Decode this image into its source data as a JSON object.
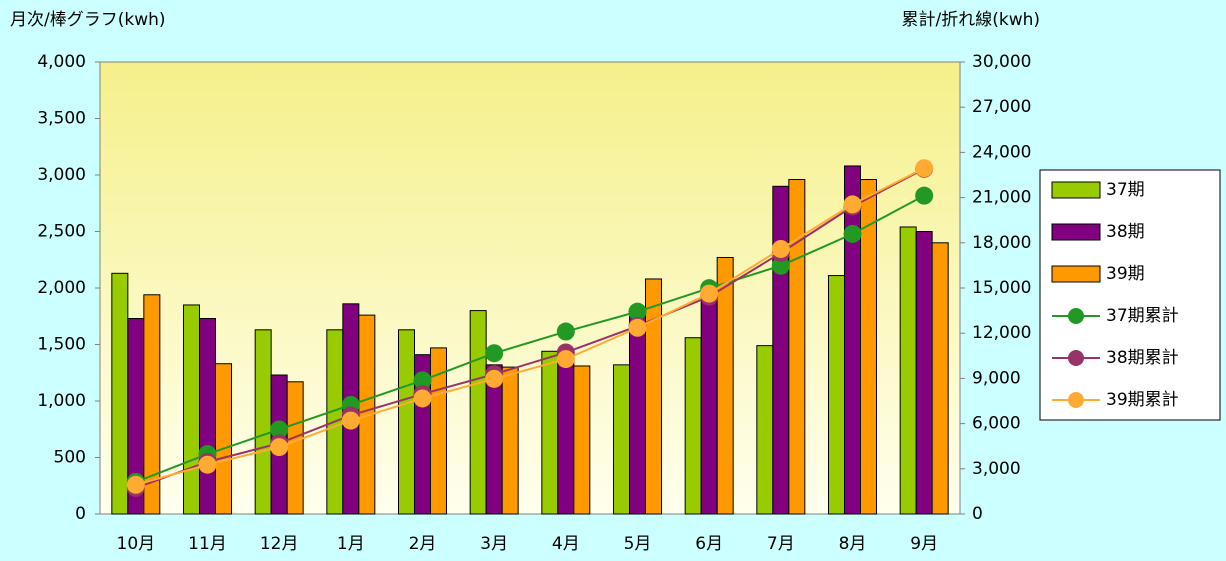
{
  "chart_data": {
    "type": "bar",
    "y_label": "月次/棒グラフ(kwh)",
    "y2_label": "累計/折れ線(kwh)",
    "categories": [
      "10月",
      "11月",
      "12月",
      "1月",
      "2月",
      "3月",
      "4月",
      "5月",
      "6月",
      "7月",
      "8月",
      "9月"
    ],
    "series": [
      {
        "name": "37期",
        "color": "#99cc00",
        "values": [
          2130,
          1850,
          1630,
          1630,
          1630,
          1800,
          1440,
          1320,
          1560,
          1490,
          2110,
          2540
        ]
      },
      {
        "name": "38期",
        "color": "#800080",
        "values": [
          1730,
          1730,
          1230,
          1860,
          1410,
          1320,
          1440,
          1750,
          1960,
          2900,
          3080,
          2500
        ]
      },
      {
        "name": "39期",
        "color": "#ff9900",
        "values": [
          1940,
          1330,
          1170,
          1760,
          1470,
          1300,
          1310,
          2080,
          2270,
          2960,
          2960,
          2400
        ]
      },
      {
        "name": "37期累計",
        "color": "#229922",
        "axis": "y2",
        "values": [
          2130,
          3980,
          5610,
          7240,
          8870,
          10670,
          12110,
          13430,
          14990,
          16480,
          18590,
          21130
        ]
      },
      {
        "name": "38期累計",
        "color": "#993366",
        "axis": "y2",
        "values": [
          1730,
          3460,
          4690,
          6550,
          7960,
          9280,
          10720,
          12470,
          14430,
          17330,
          20410,
          22910
        ]
      },
      {
        "name": "39期累計",
        "color": "#ffaa33",
        "axis": "y2",
        "values": [
          1940,
          3270,
          4440,
          6200,
          7670,
          8970,
          10280,
          12360,
          14630,
          17590,
          20550,
          22950
        ]
      }
    ],
    "ylim": [
      0,
      4000
    ],
    "yticks": [
      0,
      500,
      {
        "value": 1000,
        "label": "1,000"
      },
      {
        "value": 1500,
        "label": "1,500"
      },
      {
        "value": 2000,
        "label": "2,000"
      },
      {
        "value": 2500,
        "label": "2,500"
      },
      {
        "value": 3000,
        "label": "3,000"
      },
      {
        "value": 3500,
        "label": "3,500"
      },
      {
        "value": 4000,
        "label": "4,000"
      }
    ],
    "y2lim": [
      0,
      30000
    ],
    "y2ticks": [
      0,
      {
        "value": 3000,
        "label": "3,000"
      },
      {
        "value": 6000,
        "label": "6,000"
      },
      {
        "value": 9000,
        "label": "9,000"
      },
      {
        "value": 12000,
        "label": "12,000"
      },
      {
        "value": 15000,
        "label": "15,000"
      },
      {
        "value": 18000,
        "label": "18,000"
      },
      {
        "value": 21000,
        "label": "21,000"
      },
      {
        "value": 24000,
        "label": "24,000"
      },
      {
        "value": 27000,
        "label": "27,000"
      },
      {
        "value": 30000,
        "label": "30,000"
      }
    ],
    "legend": "right"
  }
}
